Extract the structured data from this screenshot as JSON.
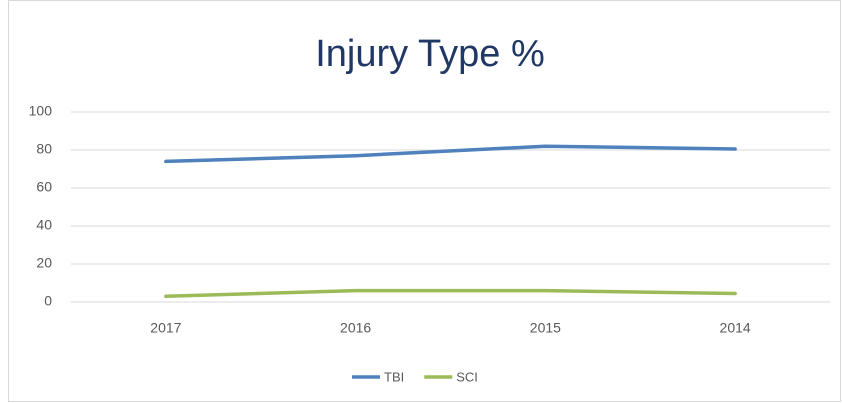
{
  "chart_data": {
    "type": "line",
    "title": "Injury Type %",
    "categories": [
      "2017",
      "2016",
      "2015",
      "2014"
    ],
    "series": [
      {
        "name": "TBI",
        "color": "#4f81bd",
        "values": [
          74,
          77,
          82,
          80.5
        ]
      },
      {
        "name": "SCI",
        "color": "#9bbb59",
        "values": [
          3,
          6,
          6,
          4.5
        ]
      }
    ],
    "ylim": [
      0,
      100
    ],
    "yticks": [
      0,
      20,
      40,
      60,
      80,
      100
    ],
    "grid": true,
    "legend": "bottom"
  }
}
